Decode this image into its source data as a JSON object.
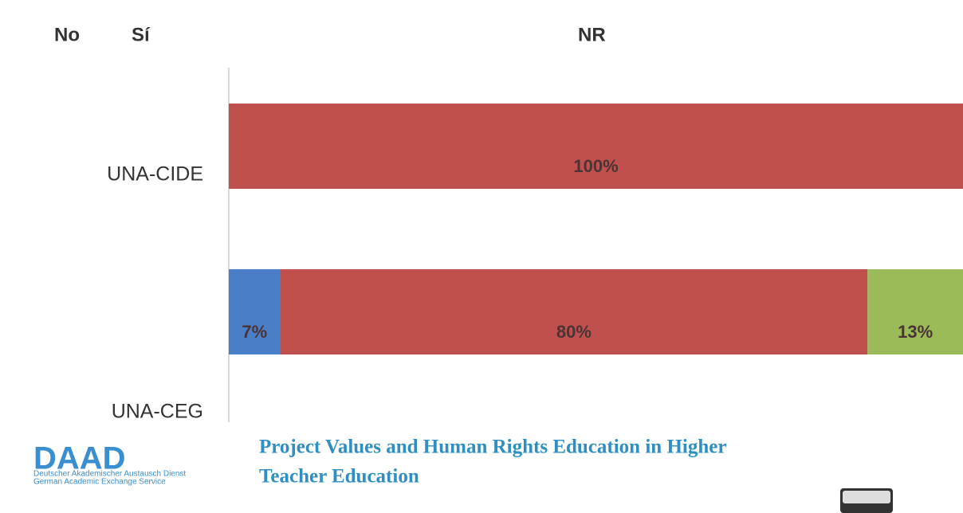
{
  "chart_data": {
    "type": "stacked-bar-horizontal",
    "categories": [
      "UNA-CIDE",
      "UNA-CEG"
    ],
    "series": [
      {
        "name": "No",
        "color": "#4a7ec8",
        "values": [
          0,
          7
        ],
        "value_labels": [
          null,
          "7%"
        ]
      },
      {
        "name": "Sí",
        "color": "#c0504d",
        "values": [
          100,
          80
        ],
        "value_labels": [
          "100%",
          "80%"
        ]
      },
      {
        "name": "NR",
        "color": "#9bbb59",
        "values": [
          0,
          13
        ],
        "value_labels": [
          null,
          "13%"
        ]
      }
    ]
  },
  "footer": {
    "logo": "DAAD",
    "logo_line1": "Deutscher Akademischer Austausch Dienst",
    "logo_line2": "German Academic Exchange Service",
    "title_line1": "Project Values and Human Rights Education in Higher",
    "title_line2": "Teacher Education"
  }
}
